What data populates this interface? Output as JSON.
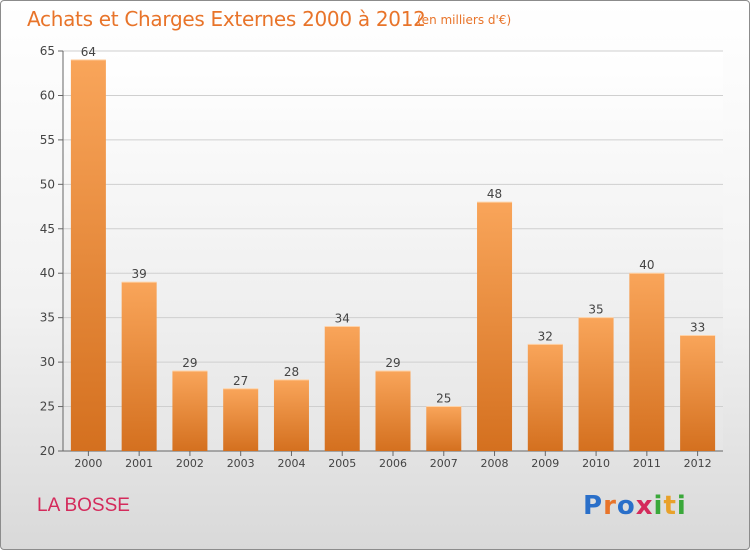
{
  "header": {
    "title": "Achats et Charges Externes 2000 à 2012",
    "subtitle": "(en milliers d'€)"
  },
  "footer": {
    "commune": "LA BOSSE",
    "brand_letters": [
      "P",
      "r",
      "o",
      "x",
      "i",
      "t",
      "i"
    ]
  },
  "colors": {
    "title": "#e8742a",
    "commune": "#d42a5b",
    "bar_top": "#f9a55a",
    "bar_bottom": "#d4701f",
    "brand": [
      "#2a6fc9",
      "#e8742a",
      "#2a6fc9",
      "#d42a5b",
      "#3aa83a",
      "#e8a12a",
      "#3aa83a"
    ]
  },
  "chart_data": {
    "type": "bar",
    "title": "Achats et Charges Externes 2000 à 2012",
    "subtitle": "(en milliers d'€)",
    "categories": [
      "2000",
      "2001",
      "2002",
      "2003",
      "2004",
      "2005",
      "2006",
      "2007",
      "2008",
      "2009",
      "2010",
      "2011",
      "2012"
    ],
    "values": [
      64,
      39,
      29,
      27,
      28,
      34,
      29,
      25,
      48,
      32,
      35,
      40,
      33
    ],
    "ylim": [
      20,
      65
    ],
    "yticks": [
      20,
      25,
      30,
      35,
      40,
      45,
      50,
      55,
      60,
      65
    ],
    "grid": true,
    "data_labels": true
  }
}
